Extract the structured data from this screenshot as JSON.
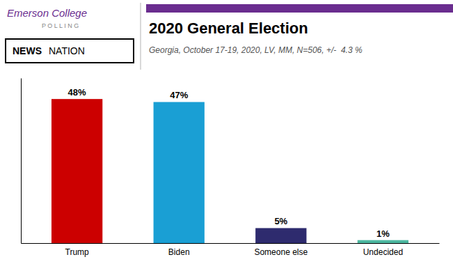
{
  "chart_data": {
    "type": "bar",
    "title": "2020 General Election",
    "subtitle": "Georgia, October 17-19, 2020, LV, MM, N=506, +/-  4.3 %",
    "annotations": [
      "Emerson College",
      "P O L L I N G",
      "NEWS",
      "NATION"
    ],
    "categories": [
      "Trump",
      "Biden",
      "Someone else",
      "Undecided"
    ],
    "values": [
      48,
      47,
      5,
      1
    ],
    "value_labels": [
      "48%",
      "47%",
      "5%",
      "1%"
    ],
    "colors": [
      "#cc0000",
      "#1a9fd4",
      "#2e2b6e",
      "#4db8a0"
    ],
    "ylim": [
      0,
      55
    ],
    "data_labels": true,
    "tick_labels": "x",
    "grid": false
  }
}
